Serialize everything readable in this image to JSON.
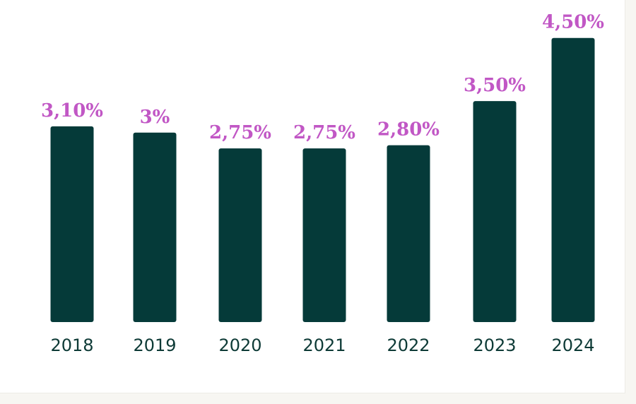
{
  "colors": {
    "bar": "#053a39",
    "value_label": "#c157c5",
    "tick_label": "#0d3a36",
    "background": "#ffffff",
    "page_edge": "#f7f6f2"
  },
  "chart_data": {
    "type": "bar",
    "categories": [
      "2018",
      "2019",
      "2020",
      "2021",
      "2022",
      "2023",
      "2024"
    ],
    "values": [
      3.1,
      3.0,
      2.75,
      2.75,
      2.8,
      3.5,
      4.5
    ],
    "data_labels": [
      "3,10%",
      "3%",
      "2,75%",
      "2,75%",
      "2,80%",
      "3,50%",
      "4,50%"
    ],
    "unit": "%",
    "ylim": [
      0,
      4.5
    ],
    "grid": false,
    "legend": "none"
  }
}
